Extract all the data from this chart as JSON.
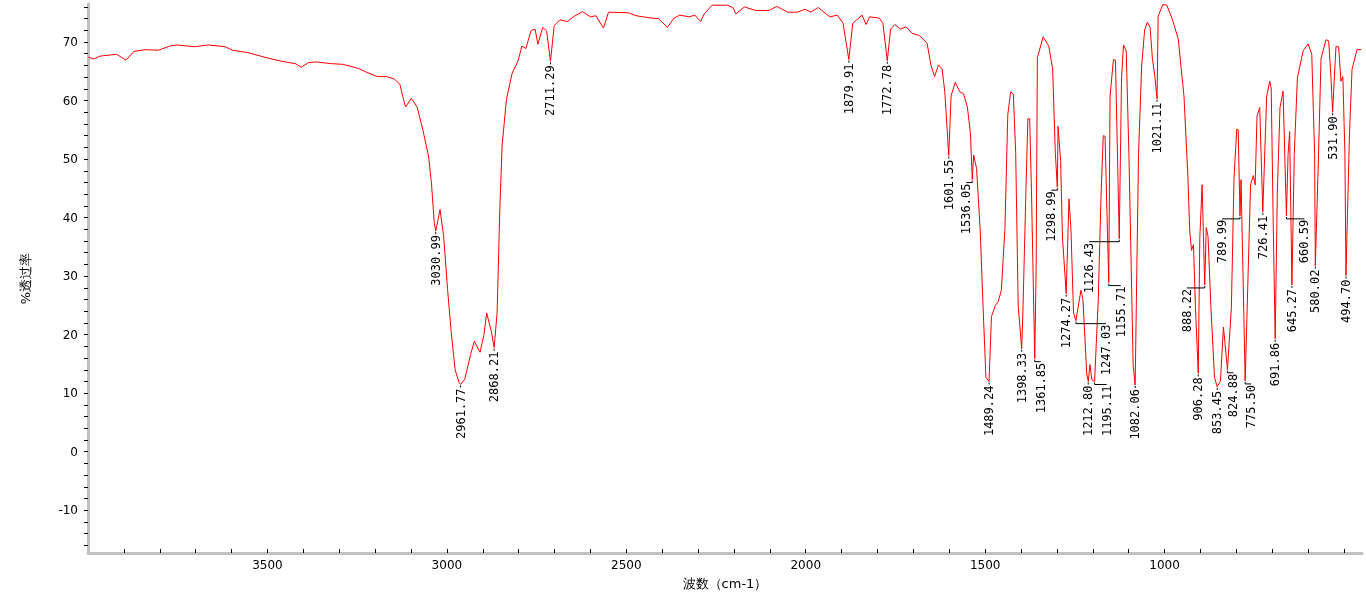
{
  "chart_data": {
    "type": "line",
    "xlabel": "波数（cm-1）",
    "ylabel": "%透过率",
    "color": "#ff0000",
    "xlim": [
      4000,
      450
    ],
    "ylim": [
      -17.3,
      76.5
    ],
    "xticks": [
      {
        "value": 500,
        "label": null
      },
      {
        "value": 600,
        "label": null
      },
      {
        "value": 700,
        "label": null
      },
      {
        "value": 800,
        "label": null
      },
      {
        "value": 900,
        "label": null
      },
      1000,
      {
        "value": 1100,
        "label": null
      },
      {
        "value": 1200,
        "label": null
      },
      {
        "value": 1300,
        "label": null
      },
      {
        "value": 1400,
        "label": null
      },
      1500,
      {
        "value": 1600,
        "label": null
      },
      {
        "value": 1700,
        "label": null
      },
      {
        "value": 1800,
        "label": null
      },
      {
        "value": 1900,
        "label": null
      },
      2000,
      {
        "value": 2100,
        "label": null
      },
      {
        "value": 2200,
        "label": null
      },
      {
        "value": 2300,
        "label": null
      },
      {
        "value": 2400,
        "label": null
      },
      2500,
      {
        "value": 2600,
        "label": null
      },
      {
        "value": 2700,
        "label": null
      },
      {
        "value": 2800,
        "label": null
      },
      {
        "value": 2900,
        "label": null
      },
      3000,
      {
        "value": 3100,
        "label": null
      },
      {
        "value": 3200,
        "label": null
      },
      {
        "value": 3300,
        "label": null
      },
      {
        "value": 3400,
        "label": null
      },
      3500,
      {
        "value": 3600,
        "label": null
      },
      {
        "value": 3700,
        "label": null
      },
      {
        "value": 3800,
        "label": null
      },
      {
        "value": 3900,
        "label": null
      }
    ],
    "yticks": [
      {
        "value": -16,
        "label": null
      },
      {
        "value": -14,
        "label": null
      },
      {
        "value": -12,
        "label": null
      },
      -10,
      {
        "value": -8,
        "label": null
      },
      {
        "value": -6,
        "label": null
      },
      {
        "value": -4,
        "label": null
      },
      {
        "value": -2,
        "label": null
      },
      0,
      {
        "value": 2,
        "label": null
      },
      {
        "value": 4,
        "label": null
      },
      {
        "value": 6,
        "label": null
      },
      {
        "value": 8,
        "label": null
      },
      10,
      {
        "value": 12,
        "label": null
      },
      {
        "value": 14,
        "label": null
      },
      {
        "value": 16,
        "label": null
      },
      {
        "value": 18,
        "label": null
      },
      20,
      {
        "value": 22,
        "label": null
      },
      {
        "value": 24,
        "label": null
      },
      {
        "value": 26,
        "label": null
      },
      {
        "value": 28,
        "label": null
      },
      30,
      {
        "value": 32,
        "label": null
      },
      {
        "value": 34,
        "label": null
      },
      {
        "value": 36,
        "label": null
      },
      {
        "value": 38,
        "label": null
      },
      40,
      {
        "value": 42,
        "label": null
      },
      {
        "value": 44,
        "label": null
      },
      {
        "value": 46,
        "label": null
      },
      {
        "value": 48,
        "label": null
      },
      50,
      {
        "value": 52,
        "label": null
      },
      {
        "value": 54,
        "label": null
      },
      {
        "value": 56,
        "label": null
      },
      {
        "value": 58,
        "label": null
      },
      60,
      {
        "value": 62,
        "label": null
      },
      {
        "value": 64,
        "label": null
      },
      {
        "value": 66,
        "label": null
      },
      {
        "value": 68,
        "label": null
      },
      70,
      {
        "value": 72,
        "label": null
      },
      {
        "value": 74,
        "label": null
      },
      {
        "value": 76,
        "label": null
      }
    ],
    "x": [
      3998,
      3984,
      3966,
      3920,
      3894,
      3872,
      3841,
      3804,
      3773,
      3752,
      3703,
      3665,
      3618,
      3597,
      3555,
      3501,
      3459,
      3422,
      3406,
      3385,
      3364,
      3321,
      3290,
      3247,
      3226,
      3194,
      3168,
      3147,
      3131,
      3122,
      3115,
      3099,
      3083,
      3067,
      3051,
      3043,
      3035,
      3030.99,
      3019,
      3009,
      2998,
      2988,
      2977,
      2966,
      2961.77,
      2950,
      2934,
      2923.5,
      2907.6,
      2897,
      2889,
      2876,
      2868.21,
      2860,
      2852.5,
      2846,
      2834,
      2818,
      2802,
      2791,
      2780,
      2765,
      2754,
      2746.5,
      2733,
      2722,
      2711.29,
      2701,
      2685,
      2664,
      2648,
      2622,
      2600,
      2585,
      2563.5,
      2549.5,
      2494,
      2473,
      2431,
      2410,
      2385.5,
      2367,
      2351,
      2325,
      2309,
      2293,
      2283,
      2261,
      2219,
      2203,
      2194.5,
      2171,
      2140,
      2102,
      2081,
      2050,
      2023,
      2002,
      1986,
      1965,
      1949,
      1933,
      1912,
      1896,
      1879.91,
      1869,
      1843,
      1832,
      1822,
      1795,
      1785,
      1772.78,
      1763.5,
      1752,
      1736,
      1720,
      1704,
      1683,
      1662,
      1651,
      1641,
      1630,
      1620,
      1612.5,
      1601.55,
      1595,
      1583.5,
      1571,
      1560.5,
      1549.6,
      1541,
      1536.05,
      1532,
      1524,
      1514,
      1506,
      1498,
      1489.24,
      1482.5,
      1471.6,
      1464,
      1455,
      1445,
      1437,
      1429,
      1421.5,
      1415,
      1408,
      1398.33,
      1395,
      1386.5,
      1381,
      1376,
      1371,
      1361.85,
      1358,
      1354.6,
      1338.6,
      1322.7,
      1312,
      1304.6,
      1298.99,
      1297,
      1289.8,
      1284.7,
      1274.27,
      1266.5,
      1261,
      1253.8,
      1247.03,
      1243,
      1233,
      1227.6,
      1217,
      1212.8,
      1208,
      1203,
      1195.11,
      1190.4,
      1185,
      1177.5,
      1171,
      1166,
      1155.71,
      1152,
      1142.6,
      1137,
      1126.43,
      1120,
      1114.6,
      1107,
      1099.5,
      1093,
      1087.6,
      1082.06,
      1079,
      1072.7,
      1064,
      1055.6,
      1048,
      1040.5,
      1034,
      1027,
      1021.11,
      1018,
      1005,
      994,
      978,
      962,
      946,
      935.5,
      930,
      925,
      919.6,
      914,
      906.28,
      902,
      895.6,
      888.22,
      884,
      879,
      871,
      861,
      853.45,
      844.5,
      836,
      824.88,
      814,
      806.6,
      799,
      795,
      789.99,
      787,
      775.5,
      767,
      760.6,
      753,
      747.7,
      742.5,
      735,
      726.41,
      715.7,
      707,
      703,
      697,
      691.86,
      686,
      678.5,
      670,
      660.59,
      656,
      651.6,
      645.27,
      638.7,
      630,
      614,
      600,
      590,
      582,
      580.02,
      572,
      564.2,
      550.3,
      542.8,
      536.4,
      531.9,
      522.6,
      515,
      508.7,
      503.3,
      497.6,
      494.7,
      485,
      477.8,
      464,
      453
    ],
    "values": [
      67.4,
      67.1,
      67.6,
      67.9,
      66.9,
      68.4,
      68.7,
      68.6,
      69.3,
      69.5,
      69.2,
      69.5,
      69.2,
      68.6,
      68.2,
      67.3,
      66.7,
      66.3,
      65.7,
      66.5,
      66.6,
      66.3,
      66.2,
      65.5,
      64.9,
      64.1,
      64.1,
      63.7,
      62.8,
      60.5,
      58.9,
      60.4,
      58.9,
      55.0,
      50.5,
      45.9,
      39.0,
      37.7,
      41.4,
      36.8,
      27.7,
      20.5,
      14.0,
      11.8,
      11.5,
      12.4,
      16.6,
      18.9,
      17.0,
      19.9,
      23.7,
      20.5,
      17.8,
      23.8,
      41.3,
      52.4,
      60.2,
      64.7,
      66.7,
      69.3,
      68.9,
      72.0,
      72.2,
      69.6,
      72.5,
      71.9,
      66.7,
      72.8,
      73.8,
      73.5,
      74.3,
      75.2,
      74.3,
      74.5,
      72.4,
      75.1,
      75.0,
      74.5,
      74.1,
      74.0,
      72.5,
      74.1,
      74.6,
      74.3,
      74.6,
      73.5,
      74.8,
      76.3,
      76.3,
      75.9,
      74.8,
      76.0,
      75.4,
      75.4,
      76.1,
      75.1,
      75.1,
      75.6,
      75.1,
      75.9,
      75.1,
      74.3,
      74.6,
      73.2,
      67.0,
      73.2,
      74.6,
      73.0,
      74.3,
      74.1,
      73.2,
      66.8,
      72.2,
      73.0,
      72.2,
      72.6,
      71.5,
      71.1,
      69.8,
      66.0,
      64.1,
      66.1,
      65.4,
      61.5,
      50.6,
      60.8,
      63.1,
      61.5,
      61.2,
      58.9,
      54.3,
      46.5,
      50.7,
      48.4,
      38.0,
      25.0,
      12.7,
      12.0,
      23.1,
      25.0,
      25.6,
      27.6,
      38.0,
      57.6,
      61.5,
      61.1,
      51.1,
      25.0,
      17.6,
      23.7,
      44.6,
      56.9,
      56.9,
      44.6,
      15.9,
      31.5,
      67.3,
      70.9,
      69.3,
      65.4,
      51.1,
      45.2,
      55.6,
      49.8,
      36.7,
      27.0,
      43.2,
      38.0,
      23.7,
      22.4,
      24.0,
      27.6,
      26.0,
      13.3,
      12.0,
      14.9,
      12.3,
      12.0,
      18.5,
      25.7,
      43.2,
      54.0,
      53.9,
      28.9,
      60.8,
      67.0,
      66.9,
      36.4,
      63.9,
      69.5,
      68.5,
      50.8,
      31.2,
      14.7,
      11.4,
      24.6,
      50.8,
      65.9,
      72.1,
      73.4,
      72.5,
      67.2,
      64.0,
      60.3,
      74.4,
      76.4,
      76.3,
      73.8,
      70.5,
      60.7,
      47.5,
      37.7,
      34.4,
      35.4,
      24.6,
      13.4,
      36.4,
      45.6,
      28.5,
      38.3,
      36.8,
      24.6,
      12.7,
      11.1,
      12.1,
      21.3,
      14.0,
      24.6,
      46.9,
      55.1,
      55.0,
      40.3,
      46.5,
      12.1,
      31.2,
      45.6,
      47.2,
      45.6,
      57.4,
      58.8,
      41.0,
      60.7,
      63.3,
      62.0,
      37.7,
      19.3,
      44.2,
      58.8,
      61.6,
      40.3,
      50.8,
      54.7,
      28.5,
      50.8,
      63.9,
      68.5,
      69.7,
      67.9,
      50.8,
      31.8,
      48.8,
      67.2,
      70.4,
      70.2,
      63.9,
      58.0,
      69.2,
      69.2,
      63.3,
      64.1,
      50.8,
      30.1,
      54.1,
      65.3,
      68.7,
      68.7
    ],
    "annotations": [
      {
        "text": "3030.99",
        "x": 3030.99,
        "y": 37.7
      },
      {
        "text": "2961.77",
        "x": 2961.77,
        "y": 11.5
      },
      {
        "text": "2868.21",
        "x": 2868.21,
        "y": 17.8
      },
      {
        "text": "2711.29",
        "x": 2711.29,
        "y": 66.7
      },
      {
        "text": "1879.91",
        "x": 1879.91,
        "y": 67.0
      },
      {
        "text": "1772.78",
        "x": 1772.78,
        "y": 66.8
      },
      {
        "text": "1601.55",
        "x": 1601.55,
        "y": 50.6
      },
      {
        "text": "1536.05",
        "x": 1536.05,
        "y": 46.5
      },
      {
        "text": "1489.24",
        "x": 1489.24,
        "y": 12.0
      },
      {
        "text": "1398.33",
        "x": 1398.33,
        "y": 17.6
      },
      {
        "text": "1361.85",
        "x": 1361.85,
        "y": 15.9
      },
      {
        "text": "1298.99",
        "x": 1298.99,
        "y": 45.2
      },
      {
        "text": "1274.27",
        "x": 1274.27,
        "y": 27.0
      },
      {
        "text": "1247.03",
        "x": 1247.03,
        "y": 22.4
      },
      {
        "text": "1212.80",
        "x": 1212.8,
        "y": 12.0
      },
      {
        "text": "1195.11",
        "x": 1195.11,
        "y": 12.0
      },
      {
        "text": "1155.71",
        "x": 1155.71,
        "y": 28.9
      },
      {
        "text": "1126.43",
        "x": 1126.43,
        "y": 36.4
      },
      {
        "text": "1082.06",
        "x": 1082.06,
        "y": 11.4
      },
      {
        "text": "1021.11",
        "x": 1021.11,
        "y": 60.3
      },
      {
        "text": "906.28",
        "x": 906.28,
        "y": 13.4
      },
      {
        "text": "888.22",
        "x": 888.22,
        "y": 28.5
      },
      {
        "text": "853.45",
        "x": 853.45,
        "y": 11.1
      },
      {
        "text": "824.88",
        "x": 824.88,
        "y": 14.0
      },
      {
        "text": "789.99",
        "x": 789.99,
        "y": 40.3
      },
      {
        "text": "775.50",
        "x": 775.5,
        "y": 12.1
      },
      {
        "text": "726.41",
        "x": 726.41,
        "y": 41.0
      },
      {
        "text": "691.86",
        "x": 691.86,
        "y": 19.3
      },
      {
        "text": "660.59",
        "x": 660.59,
        "y": 40.3
      },
      {
        "text": "645.27",
        "x": 645.27,
        "y": 28.5
      },
      {
        "text": "580.02",
        "x": 580.02,
        "y": 31.8
      },
      {
        "text": "531.90",
        "x": 531.9,
        "y": 58.0
      },
      {
        "text": "494.70",
        "x": 494.7,
        "y": 30.1
      }
    ]
  }
}
